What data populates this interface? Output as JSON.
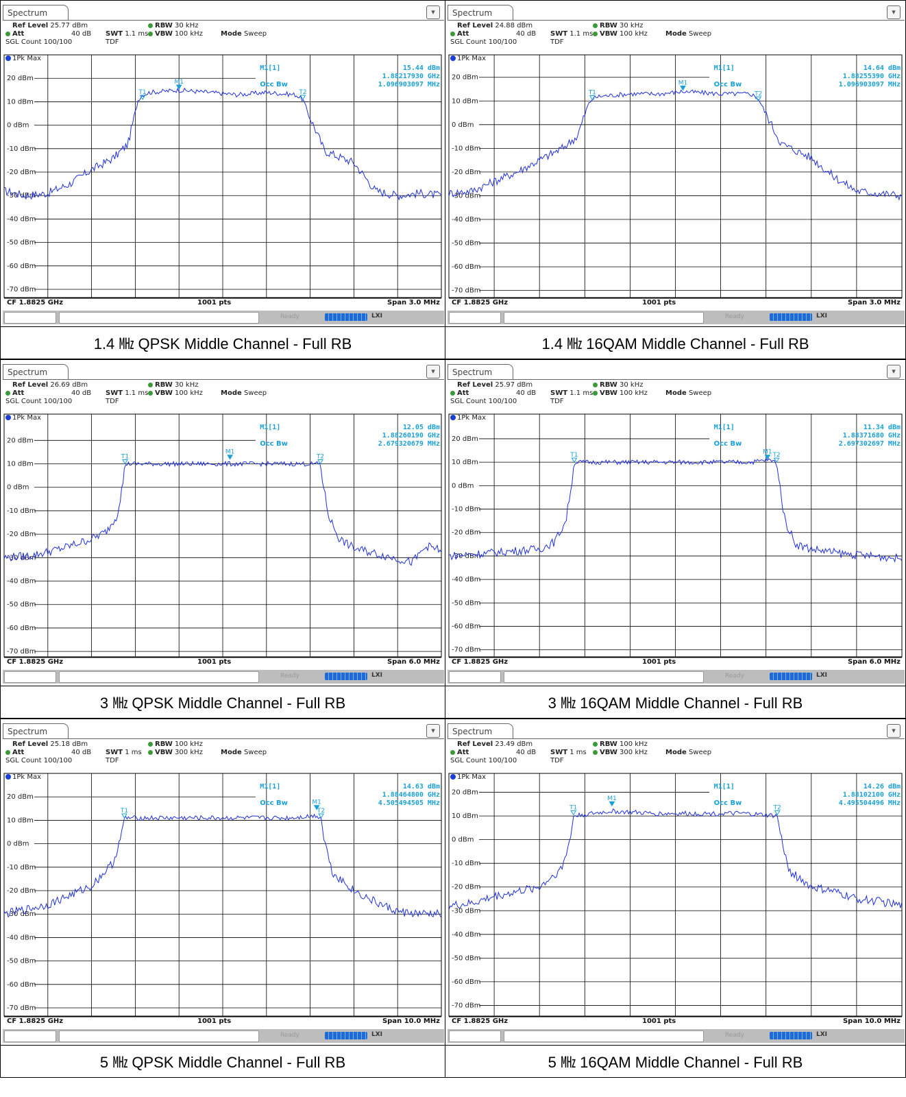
{
  "tab_label": "Spectrum",
  "menu_icon": "menu-icon",
  "trace_label": "1Pk Max",
  "status_ready": "Ready",
  "status_lxi": "LXI",
  "colors": {
    "trace": "#1f2ee0",
    "marker": "#1aa0d8",
    "grid": "#000000"
  },
  "panels": [
    {
      "caption": "1.4 ㎒ QPSK Middle Channel - Full RB",
      "ref_level": "25.77 dBm",
      "att": "40 dB",
      "swt": "1.1 ms",
      "rbw": "30 kHz",
      "vbw": "100 kHz",
      "mode": "Sweep",
      "sgl_count": "SGL Count 100/100",
      "tdf": "TDF",
      "marker_name": "M1[1]",
      "marker_level": "15.44 dBm",
      "marker_freq": "1.88217930 GHz",
      "occ_label": "Occ Bw",
      "occ_bw": "1.096903097 MHz",
      "cf": "CF 1.8825 GHz",
      "pts": "1001 pts",
      "span": "Span 3.0 MHz",
      "ref_line_label": "20 dBm",
      "chart_data": {
        "type": "line",
        "y_ticks": [
          "20 dBm",
          "10 dBm",
          "0 dBm",
          "-10 dBm",
          "-20 dBm",
          "-30 dBm",
          "-40 dBm",
          "-50 dBm",
          "-60 dBm",
          "-70 dBm"
        ],
        "y_tick_values": [
          20,
          10,
          0,
          -10,
          -20,
          -30,
          -40,
          -50,
          -60,
          -70
        ],
        "ylim": [
          -73.5,
          26.5
        ],
        "xlim": [
          -1.5,
          1.5
        ],
        "x_unit": "MHz offset from CF",
        "grid": true,
        "series": [
          {
            "values_x": [
              -1.5,
              -1.35,
              -1.2,
              -1.05,
              -0.9,
              -0.75,
              -0.65,
              -0.58,
              -0.55,
              -0.5,
              -0.3,
              -0.1,
              0.1,
              0.3,
              0.5,
              0.55,
              0.58,
              0.7,
              0.9,
              1.05,
              1.2,
              1.35,
              1.5
            ],
            "values_y": [
              -28,
              -30,
              -29,
              -25,
              -19,
              -14,
              -8,
              11,
              13,
              14,
              15,
              14,
              13,
              14,
              13,
              11,
              6,
              -11,
              -16,
              -28,
              -30,
              -29,
              -30
            ]
          }
        ],
        "markers": [
          {
            "label": "T1",
            "x": -0.55,
            "y": 11
          },
          {
            "label": "M1",
            "x": -0.3,
            "y": 15.4
          },
          {
            "label": "T2",
            "x": 0.55,
            "y": 11
          }
        ]
      }
    },
    {
      "caption": "1.4 ㎒ 16QAM Middle Channel - Full RB",
      "ref_level": "24.88 dBm",
      "att": "40 dB",
      "swt": "1.1 ms",
      "rbw": "30 kHz",
      "vbw": "100 kHz",
      "mode": "Sweep",
      "sgl_count": "SGL Count 100/100",
      "tdf": "TDF",
      "marker_name": "M1[1]",
      "marker_level": "14.64 dBm",
      "marker_freq": "1.88255390 GHz",
      "occ_label": "Occ Bw",
      "occ_bw": "1.096903097 MHz",
      "cf": "CF 1.8825 GHz",
      "pts": "1001 pts",
      "span": "Span 3.0 MHz",
      "ref_line_label": "20 dBm",
      "chart_data": {
        "type": "line",
        "y_ticks": [
          "20 dBm",
          "10 dBm",
          "0 dBm",
          "-10 dBm",
          "-20 dBm",
          "-30 dBm",
          "-40 dBm",
          "-50 dBm",
          "-60 dBm",
          "-70 dBm"
        ],
        "y_tick_values": [
          20,
          10,
          0,
          -10,
          -20,
          -30,
          -40,
          -50,
          -60,
          -70
        ],
        "ylim": [
          -73.0,
          26.0
        ],
        "xlim": [
          -1.5,
          1.5
        ],
        "x_unit": "MHz offset from CF",
        "grid": true,
        "series": [
          {
            "values_x": [
              -1.5,
              -1.35,
              -1.2,
              -1.05,
              -0.9,
              -0.75,
              -0.65,
              -0.58,
              -0.55,
              -0.5,
              -0.3,
              -0.1,
              0.05,
              0.3,
              0.5,
              0.55,
              0.58,
              0.7,
              0.9,
              1.05,
              1.2,
              1.35,
              1.5
            ],
            "values_y": [
              -29,
              -28,
              -24,
              -20,
              -15,
              -10,
              -5,
              8,
              11,
              12,
              13,
              13,
              14,
              13,
              13,
              11,
              7,
              -8,
              -14,
              -22,
              -28,
              -29,
              -30
            ]
          }
        ],
        "markers": [
          {
            "label": "T1",
            "x": -0.55,
            "y": 10.5
          },
          {
            "label": "M1",
            "x": 0.05,
            "y": 14.6
          },
          {
            "label": "T2",
            "x": 0.55,
            "y": 10
          }
        ]
      }
    },
    {
      "caption": "3 ㎒ QPSK Middle Channel - Full RB",
      "ref_level": "26.69 dBm",
      "att": "40 dB",
      "swt": "1.1 ms",
      "rbw": "30 kHz",
      "vbw": "100 kHz",
      "mode": "Sweep",
      "sgl_count": "SGL Count 100/100",
      "tdf": "TDF",
      "marker_name": "M1[1]",
      "marker_level": "12.05 dBm",
      "marker_freq": "1.88260190 GHz",
      "occ_label": "Occ Bw",
      "occ_bw": "2.679320679 MHz",
      "cf": "CF 1.8825 GHz",
      "pts": "1001 pts",
      "span": "Span 6.0 MHz",
      "ref_line_label": "20 dBm",
      "chart_data": {
        "type": "line",
        "y_ticks": [
          "20 dBm",
          "10 dBm",
          "0 dBm",
          "-10 dBm",
          "-20 dBm",
          "-30 dBm",
          "-40 dBm",
          "-50 dBm",
          "-60 dBm",
          "-70 dBm"
        ],
        "y_tick_values": [
          20,
          10,
          0,
          -10,
          -20,
          -30,
          -40,
          -50,
          -60,
          -70
        ],
        "ylim": [
          -72.3,
          27.7
        ],
        "xlim": [
          -3.0,
          3.0
        ],
        "x_unit": "MHz offset from CF",
        "grid": true,
        "series": [
          {
            "values_x": [
              -3.0,
              -2.6,
              -2.2,
              -1.8,
              -1.6,
              -1.45,
              -1.37,
              -1.34,
              -1.0,
              -0.5,
              0.1,
              0.5,
              1.0,
              1.34,
              1.37,
              1.45,
              1.6,
              1.8,
              2.2,
              2.6,
              2.8,
              3.0
            ],
            "values_y": [
              -30,
              -29,
              -26,
              -22,
              -19,
              -12,
              2,
              10,
              10,
              10,
              10,
              10,
              10,
              10,
              3,
              -12,
              -22,
              -26,
              -29,
              -32,
              -25,
              -27
            ]
          }
        ],
        "markers": [
          {
            "label": "T1",
            "x": -1.34,
            "y": 10
          },
          {
            "label": "M1",
            "x": 0.1,
            "y": 12
          },
          {
            "label": "T2",
            "x": 1.34,
            "y": 10
          }
        ]
      }
    },
    {
      "caption": "3 ㎒ 16QAM Middle Channel - Full RB",
      "ref_level": "25.97 dBm",
      "att": "40 dB",
      "swt": "1.1 ms",
      "rbw": "30 kHz",
      "vbw": "100 kHz",
      "mode": "Sweep",
      "sgl_count": "SGL Count 100/100",
      "tdf": "TDF",
      "marker_name": "M1[1]",
      "marker_level": "11.34 dBm",
      "marker_freq": "1.88371680 GHz",
      "occ_label": "Occ Bw",
      "occ_bw": "2.697302697 MHz",
      "cf": "CF 1.8825 GHz",
      "pts": "1001 pts",
      "span": "Span 6.0 MHz",
      "ref_line_label": "20 dBm",
      "chart_data": {
        "type": "line",
        "y_ticks": [
          "20 dBm",
          "10 dBm",
          "0 dBm",
          "-10 dBm",
          "-20 dBm",
          "-30 dBm",
          "-40 dBm",
          "-50 dBm",
          "-60 dBm",
          "-70 dBm"
        ],
        "y_tick_values": [
          20,
          10,
          0,
          -10,
          -20,
          -30,
          -40,
          -50,
          -60,
          -70
        ],
        "ylim": [
          -73.0,
          27.0
        ],
        "xlim": [
          -3.0,
          3.0
        ],
        "x_unit": "MHz offset from CF",
        "grid": true,
        "series": [
          {
            "values_x": [
              -3.0,
              -2.6,
              -2.2,
              -1.8,
              -1.6,
              -1.45,
              -1.37,
              -1.34,
              -1.0,
              -0.5,
              0.1,
              0.5,
              1.0,
              1.22,
              1.34,
              1.37,
              1.45,
              1.6,
              1.8,
              2.2,
              2.6,
              3.0
            ],
            "values_y": [
              -30,
              -29,
              -28,
              -27,
              -24,
              -15,
              2,
              10,
              10,
              10,
              10,
              10,
              10,
              11,
              10,
              3,
              -15,
              -25,
              -27,
              -29,
              -30,
              -31
            ]
          }
        ],
        "markers": [
          {
            "label": "T1",
            "x": -1.34,
            "y": 10
          },
          {
            "label": "M1",
            "x": 1.22,
            "y": 11.3
          },
          {
            "label": "T2",
            "x": 1.34,
            "y": 10
          }
        ]
      }
    },
    {
      "caption": "5 ㎒ QPSK Middle Channel - Full RB",
      "ref_level": "25.18 dBm",
      "att": "40 dB",
      "swt": "1 ms",
      "rbw": "100 kHz",
      "vbw": "300 kHz",
      "mode": "Sweep",
      "sgl_count": "SGL Count 100/100",
      "tdf": "TDF",
      "marker_name": "M1[1]",
      "marker_level": "14.63 dBm",
      "marker_freq": "1.88464800 GHz",
      "occ_label": "Occ Bw",
      "occ_bw": "4.505494505 MHz",
      "cf": "CF 1.8825 GHz",
      "pts": "1001 pts",
      "span": "Span 10.0 MHz",
      "ref_line_label": "20 dBm",
      "chart_data": {
        "type": "line",
        "y_ticks": [
          "20 dBm",
          "10 dBm",
          "0 dBm",
          "-10 dBm",
          "-20 dBm",
          "-30 dBm",
          "-40 dBm",
          "-50 dBm",
          "-60 dBm",
          "-70 dBm"
        ],
        "y_tick_values": [
          20,
          10,
          0,
          -10,
          -20,
          -30,
          -40,
          -50,
          -60,
          -70
        ],
        "ylim": [
          -73.5,
          26.5
        ],
        "xlim": [
          -5.0,
          5.0
        ],
        "x_unit": "MHz offset from CF",
        "grid": true,
        "series": [
          {
            "values_x": [
              -5.0,
              -4.5,
              -4.0,
              -3.5,
              -3.0,
              -2.5,
              -2.3,
              -2.25,
              -1.5,
              -0.5,
              0.5,
              1.5,
              2.15,
              2.25,
              2.3,
              2.5,
              3.0,
              3.5,
              4.0,
              4.5,
              5.0
            ],
            "values_y": [
              -30,
              -28,
              -26,
              -22,
              -18,
              -8,
              5,
              11,
              11,
              11,
              11,
              11,
              12,
              11,
              4,
              -12,
              -20,
              -25,
              -29,
              -30,
              -30
            ]
          }
        ],
        "markers": [
          {
            "label": "T1",
            "x": -2.25,
            "y": 11
          },
          {
            "label": "M1",
            "x": 2.15,
            "y": 14.6
          },
          {
            "label": "T2",
            "x": 2.25,
            "y": 11
          }
        ]
      }
    },
    {
      "caption": "5 ㎒ 16QAM Middle Channel - Full RB",
      "ref_level": "23.49 dBm",
      "att": "40 dB",
      "swt": "1 ms",
      "rbw": "100 kHz",
      "vbw": "300 kHz",
      "mode": "Sweep",
      "sgl_count": "SGL Count 100/100",
      "tdf": "TDF",
      "marker_name": "M1[1]",
      "marker_level": "14.26 dBm",
      "marker_freq": "1.88102100 GHz",
      "occ_label": "Occ Bw",
      "occ_bw": "4.495504496 MHz",
      "cf": "CF 1.8825 GHz",
      "pts": "1001 pts",
      "span": "Span 10.0 MHz",
      "ref_line_label": "20 dBm",
      "chart_data": {
        "type": "line",
        "y_ticks": [
          "20 dBm",
          "10 dBm",
          "0 dBm",
          "-10 dBm",
          "-20 dBm",
          "-30 dBm",
          "-40 dBm",
          "-50 dBm",
          "-60 dBm",
          "-70 dBm"
        ],
        "y_tick_values": [
          20,
          10,
          0,
          -10,
          -20,
          -30,
          -40,
          -50,
          -60,
          -70
        ],
        "ylim": [
          -74.5,
          24.5
        ],
        "xlim": [
          -5.0,
          5.0
        ],
        "x_unit": "MHz offset from CF",
        "grid": true,
        "series": [
          {
            "values_x": [
              -5.0,
              -4.5,
              -4.0,
              -3.5,
              -3.0,
              -2.5,
              -2.3,
              -2.25,
              -1.4,
              -0.5,
              0.5,
              1.5,
              2.25,
              2.3,
              2.5,
              3.0,
              3.5,
              4.0,
              4.5,
              5.0
            ],
            "values_y": [
              -28,
              -27,
              -24,
              -22,
              -20,
              -12,
              2,
              10,
              12,
              11,
              11,
              11,
              10,
              4,
              -13,
              -20,
              -22,
              -25,
              -26,
              -28
            ]
          }
        ],
        "markers": [
          {
            "label": "T1",
            "x": -2.25,
            "y": 10.5
          },
          {
            "label": "M1",
            "x": -1.4,
            "y": 14.3
          },
          {
            "label": "T2",
            "x": 2.25,
            "y": 10.5
          }
        ]
      }
    }
  ]
}
